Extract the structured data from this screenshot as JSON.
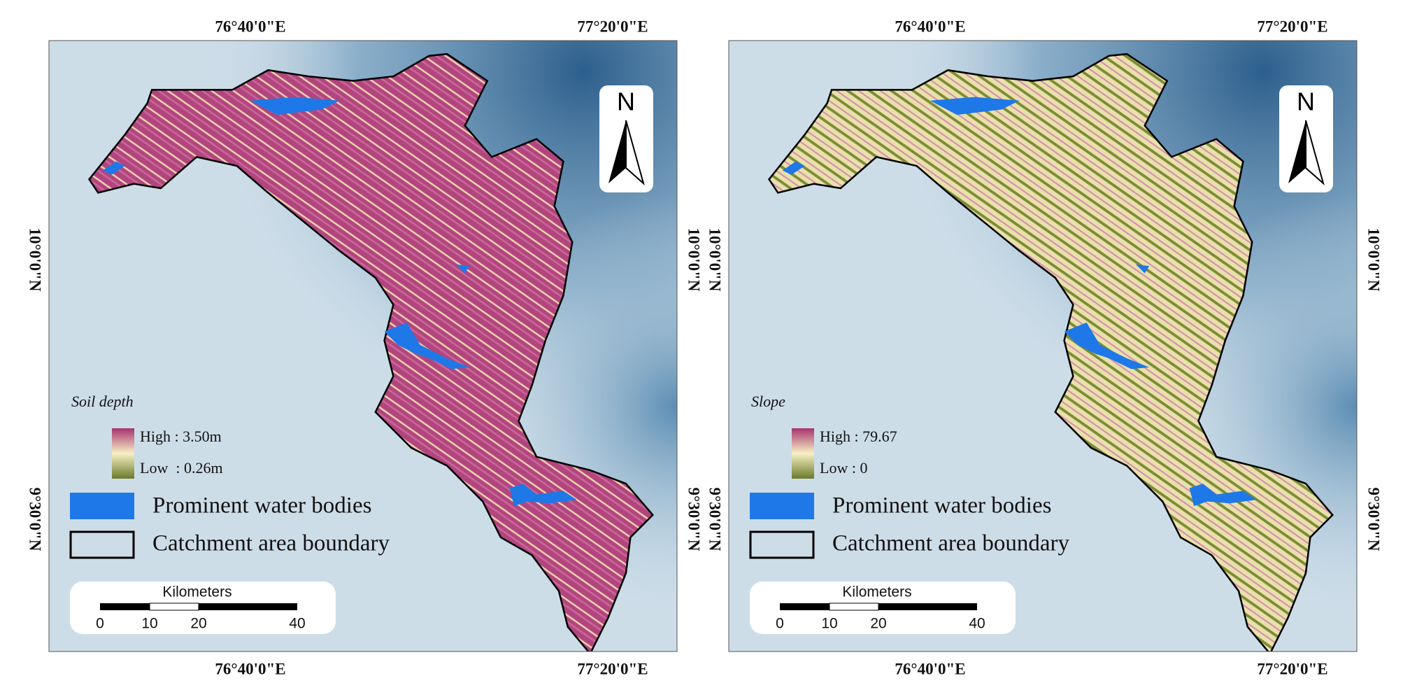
{
  "panels": [
    {
      "top_labels": [
        "76°40'0\"E",
        "77°20'0\"E"
      ],
      "bottom_labels": [
        "76°40'0\"E",
        "77°20'0\"E"
      ],
      "left_labels": [
        "10°0'0\"N",
        "9°30'0\"N"
      ],
      "right_labels": [
        "10°0'0\"N",
        "9°30'0\"N"
      ],
      "north": "N",
      "legend": {
        "title": "Soil depth",
        "high": "High : 3.50m",
        "low": "Low  : 0.26m",
        "items": [
          "Prominent water bodies",
          "Catchment area boundary"
        ]
      },
      "scale_bar": {
        "unit": "Kilometers",
        "labels": [
          "0",
          "10",
          "20",
          "40"
        ]
      }
    },
    {
      "top_labels": [
        "76°40'0\"E",
        "77°20'0\"E"
      ],
      "bottom_labels": [
        "76°40'0\"E",
        "77°20'0\"E"
      ],
      "left_labels": [
        "10°0'0\"N",
        "9°30'0\"N"
      ],
      "right_labels": [
        "10°0'0\"N",
        "9°30'0\"N"
      ],
      "north": "N",
      "legend": {
        "title": "Slope",
        "high": "High : 79.67",
        "low": "Low : 0",
        "items": [
          "Prominent water bodies",
          "Catchment area boundary"
        ]
      },
      "scale_bar": {
        "unit": "Kilometers",
        "labels": [
          "0",
          "10",
          "20",
          "40"
        ]
      }
    }
  ]
}
